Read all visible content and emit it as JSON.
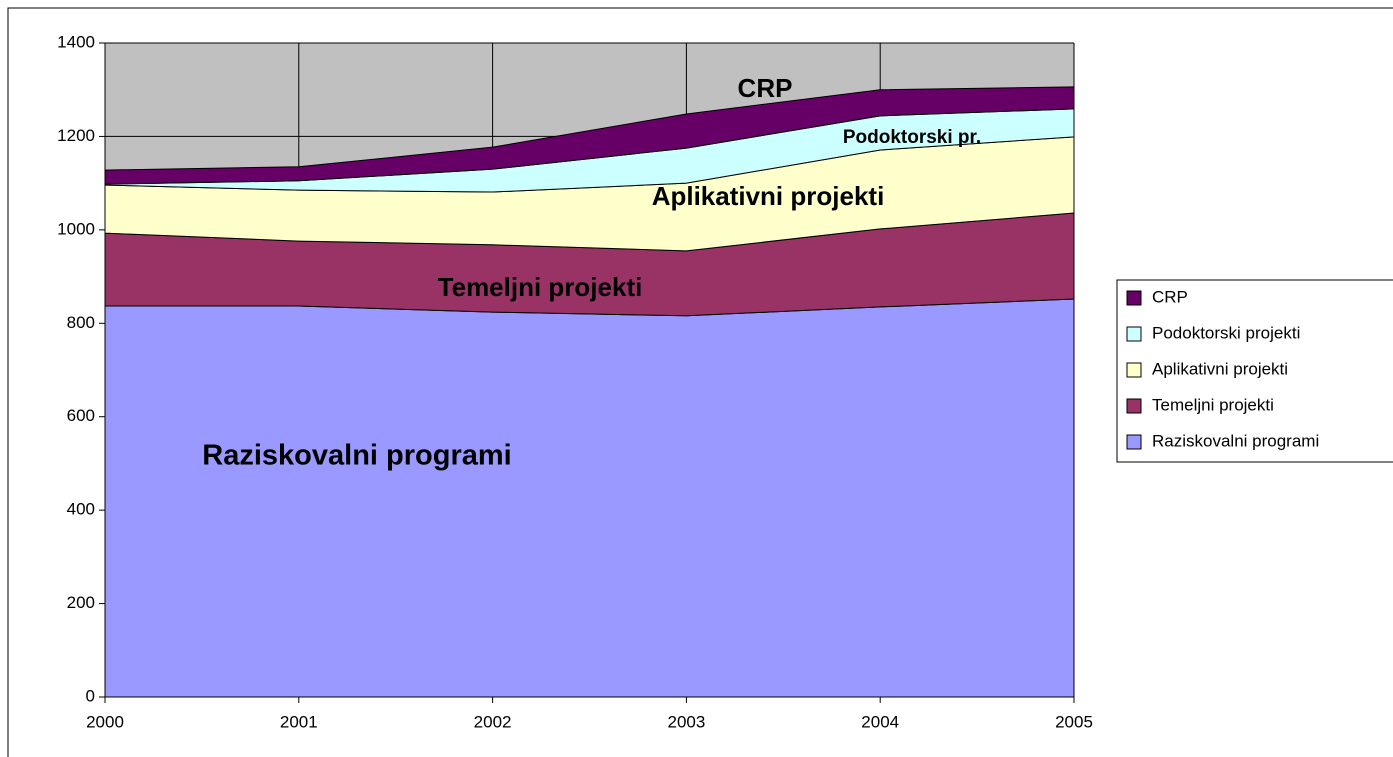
{
  "chart_data": {
    "type": "stacked_area",
    "x": [
      2000,
      2001,
      2002,
      2003,
      2004,
      2005
    ],
    "xlim": [
      2000,
      2005
    ],
    "xticks": [
      2000,
      2001,
      2002,
      2003,
      2004,
      2005
    ],
    "ylim": [
      0,
      1400
    ],
    "yticks": [
      0,
      200,
      400,
      600,
      800,
      1000,
      1200,
      1400
    ],
    "grid": true,
    "background": "#c0c0c0",
    "legend": "right",
    "series": [
      {
        "name": "Raziskovalni programi",
        "color": "#9999ff",
        "values": [
          837,
          837,
          824,
          816,
          835,
          852
        ]
      },
      {
        "name": "Temeljni projekti",
        "color": "#993366",
        "values": [
          156,
          139,
          144,
          139,
          167,
          184
        ]
      },
      {
        "name": "Aplikativni projekti",
        "color": "#ffffcc",
        "values": [
          103,
          109,
          113,
          145,
          169,
          163
        ]
      },
      {
        "name": "Podoktorski projekti",
        "color": "#ccffff",
        "values": [
          2,
          20,
          49,
          75,
          73,
          60
        ]
      },
      {
        "name": "CRP",
        "color": "#660066",
        "values": [
          30,
          30,
          47,
          73,
          56,
          47
        ]
      }
    ],
    "annotations": [
      "Raziskovalni programi",
      "Temeljni projekti",
      "Aplikativni projekti",
      "Podoktorski pr.",
      "CRP"
    ]
  }
}
